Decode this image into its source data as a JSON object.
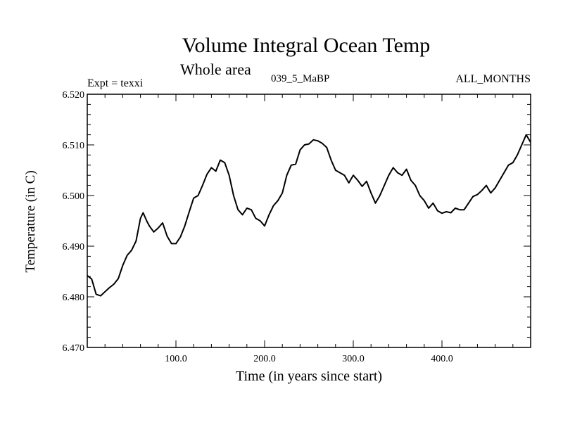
{
  "chart_data": {
    "type": "line",
    "title": "Volume Integral Ocean Temp",
    "subtitle": "Whole area",
    "experiment_label": "Expt = texxi",
    "run_label": "039_5_MaBP",
    "period_label": "ALL_MONTHS",
    "xlabel": "Time (in years since start)",
    "ylabel": "Temperature (in C)",
    "xlim": [
      0,
      500
    ],
    "ylim": [
      6.47,
      6.52
    ],
    "x_ticks": [
      {
        "value": 100,
        "label": "100.0"
      },
      {
        "value": 200,
        "label": "200.0"
      },
      {
        "value": 300,
        "label": "300.0"
      },
      {
        "value": 400,
        "label": "400.0"
      }
    ],
    "y_ticks": [
      {
        "value": 6.47,
        "label": "6.470"
      },
      {
        "value": 6.48,
        "label": "6.480"
      },
      {
        "value": 6.49,
        "label": "6.490"
      },
      {
        "value": 6.5,
        "label": "6.500"
      },
      {
        "value": 6.51,
        "label": "6.510"
      },
      {
        "value": 6.52,
        "label": "6.520"
      }
    ],
    "grid": false,
    "line_color": "#000000",
    "series": [
      {
        "name": "Volume Integral Ocean Temp",
        "x": [
          0,
          5,
          10,
          15,
          20,
          25,
          30,
          35,
          40,
          45,
          50,
          55,
          60,
          63,
          67,
          70,
          75,
          80,
          85,
          90,
          95,
          100,
          105,
          110,
          115,
          120,
          125,
          130,
          135,
          140,
          145,
          150,
          155,
          160,
          165,
          170,
          175,
          180,
          185,
          190,
          195,
          200,
          205,
          210,
          215,
          220,
          225,
          230,
          235,
          240,
          245,
          250,
          255,
          260,
          265,
          270,
          275,
          280,
          285,
          290,
          295,
          300,
          305,
          310,
          315,
          320,
          325,
          330,
          335,
          340,
          345,
          350,
          355,
          360,
          365,
          370,
          375,
          380,
          385,
          390,
          395,
          400,
          405,
          410,
          415,
          420,
          425,
          430,
          435,
          440,
          445,
          450,
          455,
          460,
          465,
          470,
          475,
          480,
          485,
          490,
          495,
          500
        ],
        "y": [
          6.4842,
          6.4835,
          6.4805,
          6.4802,
          6.481,
          6.4818,
          6.4825,
          6.4836,
          6.4862,
          6.4882,
          6.4892,
          6.491,
          6.4955,
          6.4966,
          6.495,
          6.494,
          6.4928,
          6.4936,
          6.4946,
          6.492,
          6.4905,
          6.4905,
          6.4918,
          6.494,
          6.4968,
          6.4995,
          6.5,
          6.502,
          6.5042,
          6.5055,
          6.5048,
          6.507,
          6.5065,
          6.504,
          6.5,
          6.4972,
          6.4962,
          6.4975,
          6.4972,
          6.4955,
          6.495,
          6.494,
          6.4962,
          6.498,
          6.499,
          6.5005,
          6.504,
          6.506,
          6.5062,
          6.509,
          6.51,
          6.5102,
          6.511,
          6.5108,
          6.5103,
          6.5095,
          6.507,
          6.505,
          6.5045,
          6.504,
          6.5025,
          6.504,
          6.503,
          6.5018,
          6.5028,
          6.5005,
          6.4985,
          6.5,
          6.502,
          6.504,
          6.5055,
          6.5045,
          6.504,
          6.5052,
          6.503,
          6.502,
          6.5,
          6.499,
          6.4975,
          6.4985,
          6.497,
          6.4965,
          6.4968,
          6.4966,
          6.4975,
          6.4972,
          6.4972,
          6.4985,
          6.4998,
          6.5002,
          6.501,
          6.502,
          6.5005,
          6.5015,
          6.503,
          6.5045,
          6.506,
          6.5065,
          6.508,
          6.51,
          6.512,
          6.5105
        ]
      }
    ]
  }
}
